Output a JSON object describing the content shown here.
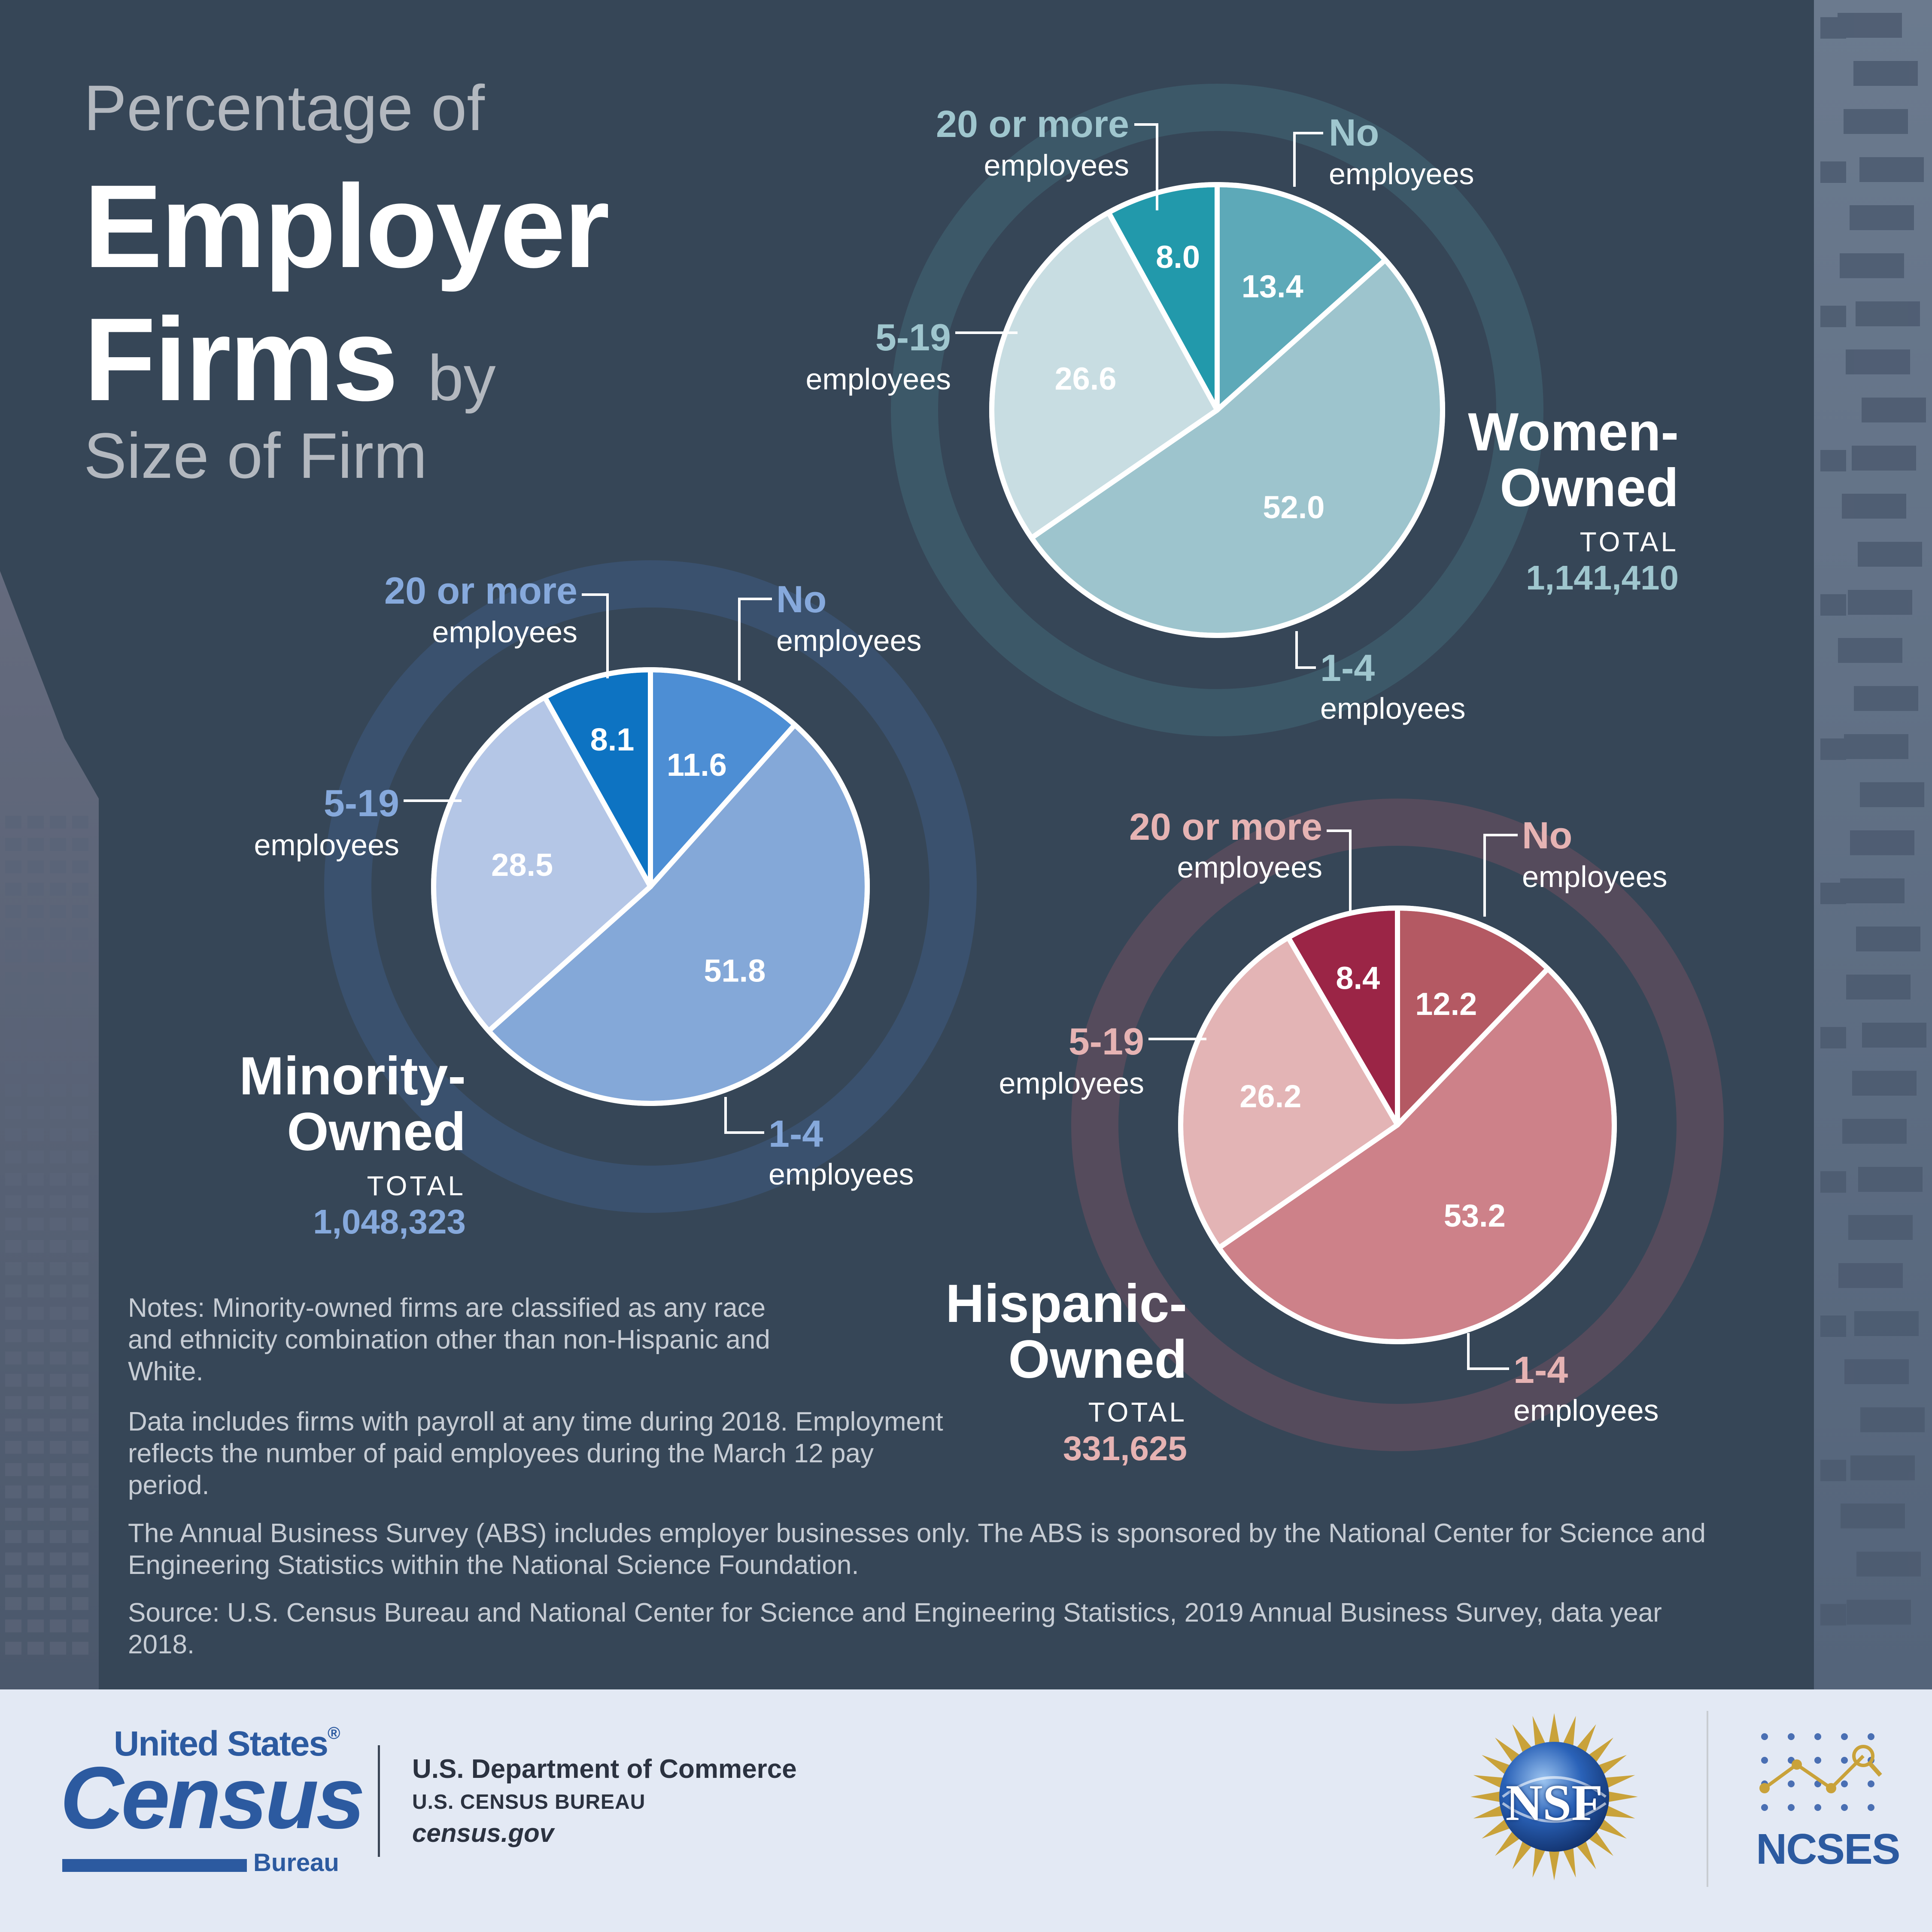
{
  "title": {
    "line1": "Percentage of",
    "line2": "Employer",
    "line3": "Firms",
    "line3_suffix": "by",
    "line4": "Size of Firm"
  },
  "chart_data": [
    {
      "type": "pie",
      "title": "Women-Owned",
      "title_lines": [
        "Women-",
        "Owned"
      ],
      "total_label": "TOTAL",
      "total": "1,141,410",
      "categories": [
        "No employees",
        "1-4 employees",
        "5-19 employees",
        "20 or more employees"
      ],
      "values": [
        13.4,
        52.0,
        26.6,
        8.0
      ],
      "labels": [
        "13.4",
        "52.0",
        "26.6",
        "8.0"
      ],
      "colors": [
        "#5da9b8",
        "#9dc4cd",
        "#c8dde2",
        "#2299ab"
      ],
      "accent": "#9fc6ce",
      "legend": [
        {
          "head": "No",
          "sub": "employees"
        },
        {
          "head": "1-4",
          "sub": "employees"
        },
        {
          "head": "5-19",
          "sub": "employees"
        },
        {
          "head": "20 or more",
          "sub": "employees"
        }
      ]
    },
    {
      "type": "pie",
      "title": "Minority-Owned",
      "title_lines": [
        "Minority-",
        "Owned"
      ],
      "total_label": "TOTAL",
      "total": "1,048,323",
      "categories": [
        "No employees",
        "1-4 employees",
        "5-19 employees",
        "20 or more employees"
      ],
      "values": [
        11.6,
        51.8,
        28.5,
        8.1
      ],
      "labels": [
        "11.6",
        "51.8",
        "28.5",
        "8.1"
      ],
      "colors": [
        "#4d8ed4",
        "#84a8d8",
        "#b4c6e6",
        "#0d73c2"
      ],
      "accent": "#86a9dc",
      "legend": [
        {
          "head": "No",
          "sub": "employees"
        },
        {
          "head": "1-4",
          "sub": "employees"
        },
        {
          "head": "5-19",
          "sub": "employees"
        },
        {
          "head": "20 or more",
          "sub": "employees"
        }
      ]
    },
    {
      "type": "pie",
      "title": "Hispanic-Owned",
      "title_lines": [
        "Hispanic-",
        "Owned"
      ],
      "total_label": "TOTAL",
      "total": "331,625",
      "categories": [
        "No employees",
        "1-4 employees",
        "5-19 employees",
        "20 or more employees"
      ],
      "values": [
        12.2,
        53.2,
        26.2,
        8.4
      ],
      "labels": [
        "12.2",
        "53.2",
        "26.2",
        "8.4"
      ],
      "colors": [
        "#b45963",
        "#cd8189",
        "#e3b4b5",
        "#9b2546"
      ],
      "accent": "#e6b3b3",
      "legend": [
        {
          "head": "No",
          "sub": "employees"
        },
        {
          "head": "1-4",
          "sub": "employees"
        },
        {
          "head": "5-19",
          "sub": "employees"
        },
        {
          "head": "20 or more",
          "sub": "employees"
        }
      ]
    }
  ],
  "notes": [
    "Notes: Minority-owned firms are classified as any race and ethnicity combination other than non-Hispanic and White.",
    "Data includes firms with payroll at any time during 2018. Employment reflects the number of paid employees during the March 12 pay period.",
    "The Annual Business Survey (ABS) includes employer businesses only. The ABS is sponsored by the National Center for Science and Engineering Statistics within the National Science Foundation.",
    "Source: U.S. Census Bureau and National Center for Science and Engineering Statistics, 2019 Annual Business Survey, data year 2018."
  ],
  "footer": {
    "census_line1": "United States",
    "census_reg": "®",
    "census_line2": "Census",
    "census_line3": "Bureau",
    "dept": "U.S. Department of Commerce",
    "bureau": "U.S. CENSUS BUREAU",
    "url": "census.gov",
    "nsf": "NSF",
    "ncses": "NCSES"
  },
  "colors": {
    "background": "#364657",
    "footer_bg": "#e3e9f4",
    "census_blue": "#2c5aa0",
    "nsf_blue": "#2a62b8",
    "nsf_gold": "#c9a23a"
  }
}
